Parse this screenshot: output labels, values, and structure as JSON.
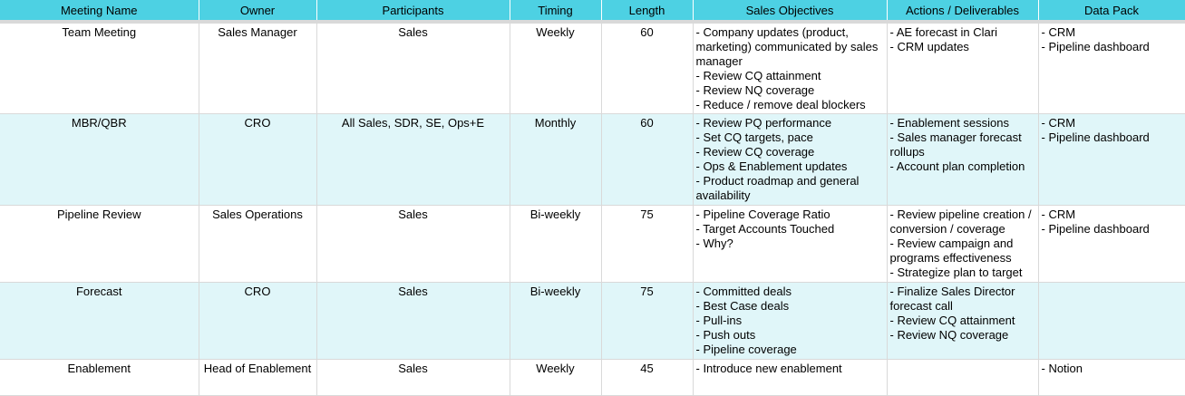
{
  "headers": [
    "Meeting Name",
    "Owner",
    "Participants",
    "Timing",
    "Length",
    "Sales Objectives",
    "Actions / Deliverables",
    "Data Pack"
  ],
  "rows": [
    {
      "name": "Team Meeting",
      "owner": "Sales Manager",
      "participants": "Sales",
      "timing": "Weekly",
      "length": "60",
      "objectives": [
        "- Company updates (product, marketing) communicated by sales manager",
        "- Review CQ attainment",
        "- Review NQ coverage",
        "- Reduce / remove deal blockers"
      ],
      "actions": [
        "- AE forecast in Clari",
        "- CRM updates"
      ],
      "datapack": [
        "- CRM",
        "- Pipeline dashboard"
      ]
    },
    {
      "name": "MBR/QBR",
      "owner": "CRO",
      "participants": "All Sales, SDR, SE, Ops+E",
      "timing": "Monthly",
      "length": "60",
      "objectives": [
        "- Review PQ performance",
        "- Set CQ targets, pace",
        "- Review CQ coverage",
        "- Ops & Enablement updates",
        "- Product roadmap and general availability"
      ],
      "actions": [
        "- Enablement sessions",
        "- Sales manager forecast rollups",
        "- Account plan completion"
      ],
      "datapack": [
        "- CRM",
        "- Pipeline dashboard"
      ]
    },
    {
      "name": "Pipeline Review",
      "owner": "Sales Operations",
      "participants": "Sales",
      "timing": "Bi-weekly",
      "length": "75",
      "objectives": [
        "- Pipeline Coverage Ratio",
        "- Target Accounts Touched",
        "- Why?"
      ],
      "actions": [
        "- Review pipeline creation / conversion / coverage",
        "- Review campaign and programs effectiveness",
        "- Strategize plan to target"
      ],
      "datapack": [
        "- CRM",
        "- Pipeline dashboard"
      ]
    },
    {
      "name": "Forecast",
      "owner": "CRO",
      "participants": "Sales",
      "timing": "Bi-weekly",
      "length": "75",
      "objectives": [
        "- Committed deals",
        "- Best Case deals",
        "- Pull-ins",
        "- Push outs",
        "- Pipeline coverage"
      ],
      "actions": [
        "- Finalize Sales Director forecast call",
        "- Review CQ attainment",
        "- Review NQ coverage"
      ],
      "datapack": []
    },
    {
      "name": "Enablement",
      "owner": "Head of Enablement",
      "participants": "Sales",
      "timing": "Weekly",
      "length": "45",
      "objectives": [
        "- Introduce new enablement"
      ],
      "actions": [],
      "datapack": [
        "- Notion"
      ]
    }
  ]
}
